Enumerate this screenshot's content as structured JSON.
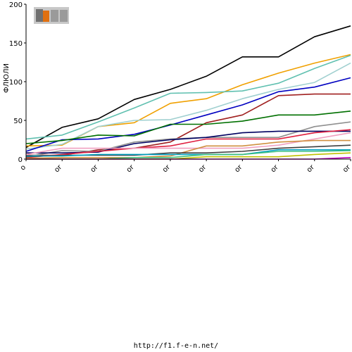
{
  "chart_data": {
    "type": "line",
    "ylabel": "ФЛЮЛИ",
    "ylim": [
      0,
      200
    ],
    "yticks": [
      0,
      50,
      100,
      150,
      200
    ],
    "x": [
      0,
      1,
      2,
      3,
      4,
      5,
      6,
      7,
      8,
      9
    ],
    "xtick_labels": [
      "o",
      "or",
      "or",
      "or",
      "or",
      "or",
      "or",
      "or",
      "or",
      "or"
    ],
    "grid": false,
    "series": [
      {
        "color": "#000000",
        "values": [
          15,
          41,
          52,
          77,
          90,
          107,
          132,
          132,
          158,
          172
        ]
      },
      {
        "color": "#f0a000",
        "values": [
          17,
          18,
          42,
          47,
          72,
          78,
          96,
          111,
          124,
          135
        ]
      },
      {
        "color": "#60c0b0",
        "values": [
          26,
          31,
          48,
          66,
          85,
          86,
          88,
          98,
          117,
          134
        ]
      },
      {
        "color": "#a0d0d0",
        "values": [
          13,
          19,
          42,
          50,
          51,
          63,
          78,
          90,
          99,
          124
        ]
      },
      {
        "color": "#0000c0",
        "values": [
          10,
          25,
          26,
          32,
          44,
          57,
          70,
          87,
          93,
          105
        ]
      },
      {
        "color": "#a02020",
        "values": [
          5,
          5,
          12,
          14,
          22,
          47,
          57,
          82,
          84,
          84
        ]
      },
      {
        "color": "#007000",
        "values": [
          20,
          24,
          31,
          30,
          45,
          45,
          49,
          57,
          57,
          62
        ]
      },
      {
        "color": "#909090",
        "values": [
          3,
          11,
          10,
          22,
          26,
          28,
          28,
          28,
          42,
          48
        ]
      },
      {
        "color": "#000060",
        "values": [
          8,
          8,
          9,
          20,
          25,
          28,
          34,
          36,
          36,
          36
        ]
      },
      {
        "color": "#e02040",
        "values": [
          2,
          6,
          10,
          14,
          17,
          26,
          26,
          26,
          34,
          38
        ]
      },
      {
        "color": "#f0a0c0",
        "values": [
          6,
          14,
          14,
          14,
          14,
          14,
          14,
          18,
          26,
          34
        ]
      },
      {
        "color": "#d09040",
        "values": [
          1,
          2,
          2,
          2,
          4,
          17,
          17,
          22,
          24,
          24
        ]
      },
      {
        "color": "#404040",
        "values": [
          3,
          5,
          5,
          5,
          8,
          8,
          10,
          14,
          16,
          18
        ]
      },
      {
        "color": "#00a0c0",
        "values": [
          4,
          4,
          6,
          6,
          6,
          6,
          6,
          12,
          12,
          12
        ]
      },
      {
        "color": "#40c080",
        "values": [
          0,
          0,
          0,
          2,
          2,
          6,
          6,
          10,
          10,
          11
        ]
      },
      {
        "color": "#c0c000",
        "values": [
          0,
          0,
          0,
          0,
          0,
          3,
          3,
          3,
          6,
          8
        ]
      },
      {
        "color": "#c000c0",
        "values": [
          0,
          0,
          0,
          0,
          0,
          0,
          0,
          0,
          0,
          2
        ]
      }
    ]
  },
  "logo_text": "F1EN",
  "footer": {
    "url": "http://f1.f-e-n.net/"
  }
}
